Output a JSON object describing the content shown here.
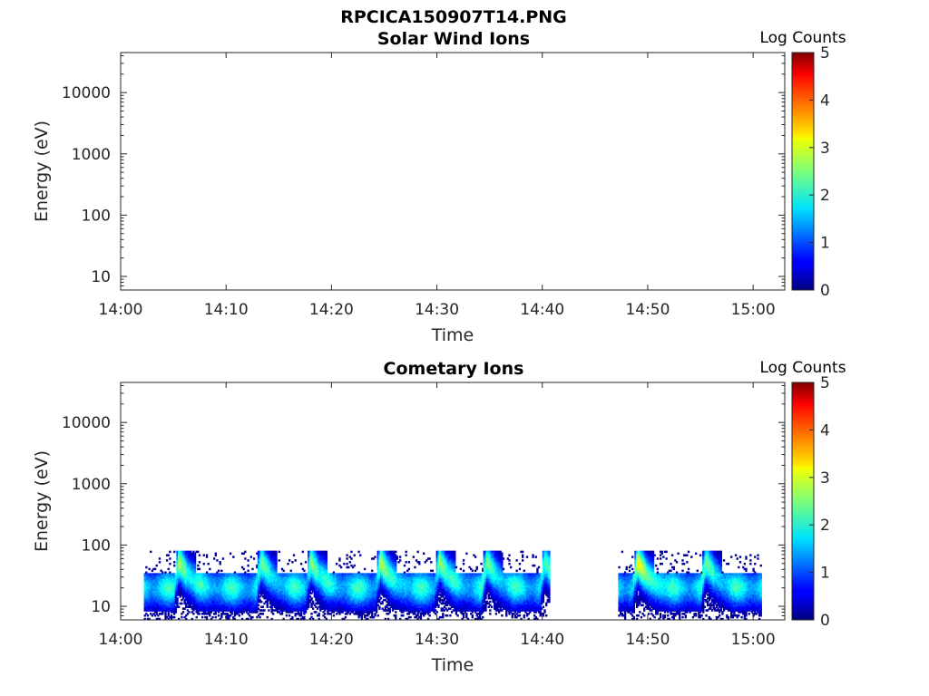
{
  "figure": {
    "title": "RPCICA150907T14.PNG"
  },
  "chart_data": [
    {
      "type": "heatmap",
      "title": "Solar Wind Ions",
      "xlabel": "Time",
      "ylabel": "Energy (eV)",
      "x_ticks": [
        "14:00",
        "14:10",
        "14:20",
        "14:30",
        "14:40",
        "14:50",
        "15:00"
      ],
      "y_ticks": [
        "10",
        "100",
        "1000",
        "10000"
      ],
      "yscale": "log",
      "xlim_minutes": [
        0,
        63
      ],
      "ylim": [
        6,
        45000
      ],
      "colorbar": {
        "label": "Log Counts",
        "ticks": [
          "0",
          "1",
          "2",
          "3",
          "4",
          "5"
        ],
        "range": [
          0,
          5
        ],
        "colormap": "jet"
      },
      "data": []
    },
    {
      "type": "heatmap",
      "title": "Cometary Ions",
      "xlabel": "Time",
      "ylabel": "Energy (eV)",
      "x_ticks": [
        "14:00",
        "14:10",
        "14:20",
        "14:30",
        "14:40",
        "14:50",
        "15:00"
      ],
      "y_ticks": [
        "10",
        "100",
        "1000",
        "10000"
      ],
      "yscale": "log",
      "xlim_minutes": [
        0,
        63
      ],
      "ylim": [
        6,
        45000
      ],
      "colorbar": {
        "label": "Log Counts",
        "ticks": [
          "0",
          "1",
          "2",
          "3",
          "4",
          "5"
        ],
        "range": [
          0,
          5
        ],
        "colormap": "jet"
      },
      "data_segments_minutes": [
        [
          2.2,
          40.6
        ],
        [
          47.2,
          60.7
        ]
      ],
      "energy_extent_eV": [
        6,
        80
      ],
      "peaks": [
        {
          "t_minutes": 5.5,
          "log_counts": 2.5
        },
        {
          "t_minutes": 13.3,
          "log_counts": 2.3
        },
        {
          "t_minutes": 18.0,
          "log_counts": 2.4
        },
        {
          "t_minutes": 24.6,
          "log_counts": 2.6
        },
        {
          "t_minutes": 30.2,
          "log_counts": 2.4
        },
        {
          "t_minutes": 34.7,
          "log_counts": 2.3
        },
        {
          "t_minutes": 40.2,
          "log_counts": 2.1
        },
        {
          "t_minutes": 49.0,
          "log_counts": 3.0
        },
        {
          "t_minutes": 55.5,
          "log_counts": 2.3
        }
      ]
    }
  ]
}
